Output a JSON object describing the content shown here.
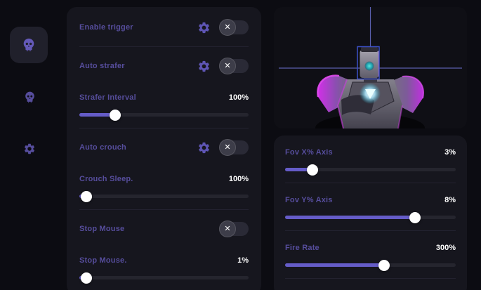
{
  "icons": {
    "close": "✕",
    "gear": "gear-icon",
    "skull": "skull-icon"
  },
  "colors": {
    "background": "#0c0c12",
    "panel": "#16161e",
    "accent": "#655cc8",
    "label": "#564d9c",
    "magenta_highlight": "#d634f0",
    "crosshair": "#5a5fae"
  },
  "sidebar": {
    "items": [
      {
        "icon": "skull-icon",
        "active": true
      },
      {
        "icon": "skull-icon",
        "active": false
      },
      {
        "icon": "gear-icon",
        "active": false
      }
    ]
  },
  "controls": {
    "enable_trigger": {
      "label": "Enable trigger",
      "toggle": "off"
    },
    "auto_strafer": {
      "label": "Auto strafer",
      "toggle": "off"
    },
    "strafer_interval": {
      "label": "Strafer Interval",
      "value": "100%",
      "percent": 21
    },
    "auto_crouch": {
      "label": "Auto crouch",
      "toggle": "off"
    },
    "crouch_sleep": {
      "label": "Crouch Sleep.",
      "value": "100%",
      "percent": 4
    },
    "stop_mouse": {
      "label": "Stop Mouse",
      "toggle": "off"
    },
    "stop_mouse_delay": {
      "label": "Stop Mouse.",
      "value": "1%",
      "percent": 4
    }
  },
  "aim_controls": {
    "fov_x": {
      "label": "Fov X% Axis",
      "value": "3%",
      "percent": 16
    },
    "fov_y": {
      "label": "Fov Y% Axis",
      "value": "8%",
      "percent": 76
    },
    "fire_rate": {
      "label": "Fire Rate",
      "value": "300%",
      "percent": 58
    }
  }
}
